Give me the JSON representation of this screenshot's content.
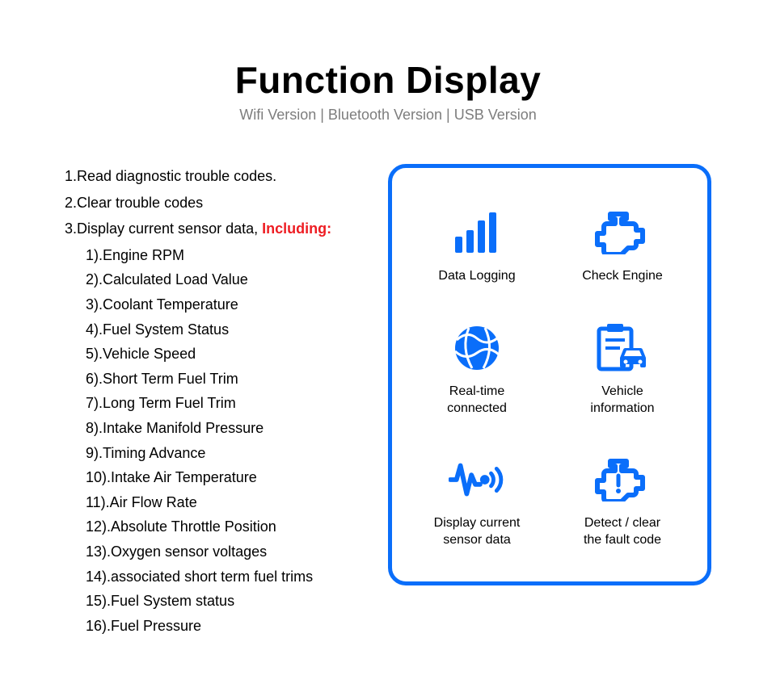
{
  "colors": {
    "accent": "#0a6efa",
    "text": "#000000",
    "subtitle": "#7d7d7d",
    "highlight": "#ee1d23",
    "background": "#ffffff",
    "panel_border": "#0a6efa"
  },
  "typography": {
    "title_fontsize": 46,
    "title_weight": 900,
    "subtitle_fontsize": 18,
    "body_fontsize": 18,
    "feature_label_fontsize": 16
  },
  "header": {
    "title": "Function Display",
    "subtitle": "Wifi Version | Bluetooth Version | USB Version"
  },
  "list": {
    "item1": "1.Read diagnostic trouble codes.",
    "item2": "2.Clear trouble codes",
    "item3_prefix": "3.Display current sensor data, ",
    "item3_highlight": "Including:",
    "sub": {
      "s1": "1).Engine RPM",
      "s2": "2).Calculated Load Value",
      "s3": "3).Coolant Temperature",
      "s4": "4).Fuel System Status",
      "s5": "5).Vehicle Speed",
      "s6": "6).Short Term Fuel Trim",
      "s7": "7).Long Term Fuel Trim",
      "s8": "8).Intake Manifold Pressure",
      "s9": "9).Timing Advance",
      "s10": "10).Intake Air Temperature",
      "s11": "11).Air Flow Rate",
      "s12": "12).Absolute Throttle Position",
      "s13": "13).Oxygen sensor voltages",
      "s14": "14).associated short term fuel trims",
      "s15": "15).Fuel System status",
      "s16": "16).Fuel Pressure"
    }
  },
  "panel": {
    "border_radius": 22,
    "border_width": 5,
    "features": {
      "f1": {
        "label": "Data Logging",
        "icon": "bars-icon"
      },
      "f2": {
        "label": "Check Engine",
        "icon": "engine-icon"
      },
      "f3": {
        "label": "Real-time\nconnected",
        "icon": "globe-icon"
      },
      "f4": {
        "label": "Vehicle\ninformation",
        "icon": "clipboard-car-icon"
      },
      "f5": {
        "label": "Display current\nsensor data",
        "icon": "pulse-icon"
      },
      "f6": {
        "label": "Detect / clear\nthe fault code",
        "icon": "engine-alert-icon"
      }
    }
  }
}
